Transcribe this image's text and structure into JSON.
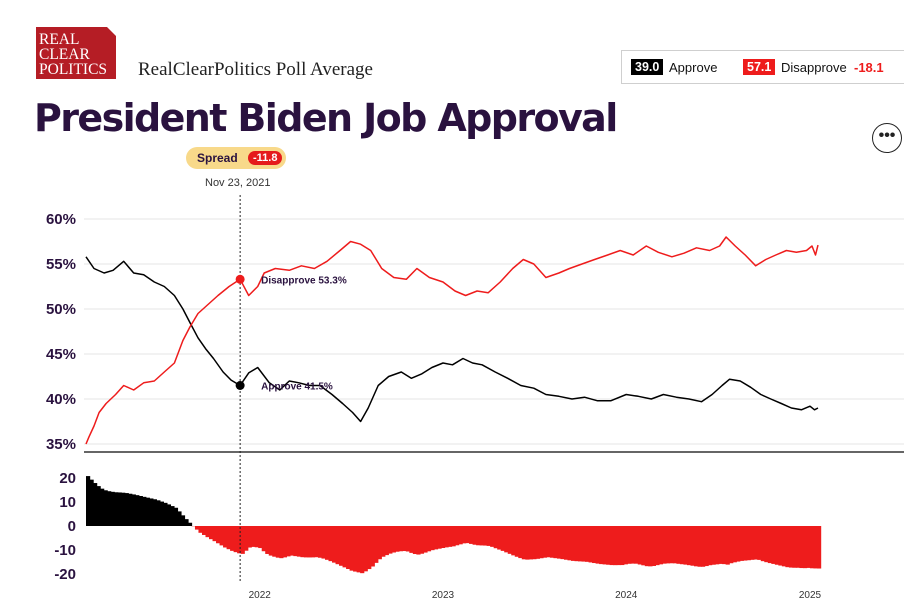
{
  "logo": {
    "lines": [
      "REAL",
      "CLEAR",
      "POLITICS"
    ]
  },
  "header": {
    "subtitle": "RealClearPolitics Poll Average",
    "title": "President Biden Job Approval",
    "more_icon": "ellipsis-icon",
    "more_label": "•••"
  },
  "legend": {
    "approve_value": "39.0",
    "approve_label": "Approve",
    "disapprove_value": "57.1",
    "disapprove_label": "Disapprove",
    "spread": "-18.1"
  },
  "hover": {
    "spread_label": "Spread",
    "spread_value": "-11.8",
    "date": "Nov 23, 2021",
    "disapprove_label": "Disapprove 53.3%",
    "approve_label": "Approve 41.5%"
  },
  "colors": {
    "approve": "#000000",
    "disapprove": "#ee1c1c",
    "title": "#2a123f",
    "spread_pill": "#f8d98a"
  },
  "chart_data": {
    "type": "line",
    "x_ticks": [
      "2022",
      "2023",
      "2024",
      "2025"
    ],
    "x_range": [
      "2021-01-20",
      "2025-01-20"
    ],
    "top": {
      "ylim": [
        34,
        61
      ],
      "y_ticks": [
        35,
        40,
        45,
        50,
        55,
        60
      ],
      "y_tick_labels": [
        "35%",
        "40%",
        "45%",
        "50%",
        "55%",
        "60%"
      ],
      "grid": true,
      "series": [
        {
          "name": "Approve",
          "color": "#000000",
          "points": [
            [
              "2021-01-20",
              55.8
            ],
            [
              "2021-02-05",
              54.5
            ],
            [
              "2021-02-25",
              54.0
            ],
            [
              "2021-03-15",
              54.3
            ],
            [
              "2021-04-05",
              55.3
            ],
            [
              "2021-04-25",
              54.0
            ],
            [
              "2021-05-15",
              53.8
            ],
            [
              "2021-06-05",
              53.0
            ],
            [
              "2021-06-25",
              52.5
            ],
            [
              "2021-07-15",
              51.5
            ],
            [
              "2021-08-01",
              50.0
            ],
            [
              "2021-08-15",
              48.5
            ],
            [
              "2021-08-31",
              46.8
            ],
            [
              "2021-09-15",
              45.6
            ],
            [
              "2021-10-01",
              44.5
            ],
            [
              "2021-10-20",
              43.0
            ],
            [
              "2021-11-05",
              42.1
            ],
            [
              "2021-11-23",
              41.5
            ],
            [
              "2021-12-10",
              42.9
            ],
            [
              "2021-12-28",
              43.5
            ],
            [
              "2022-01-20",
              41.8
            ],
            [
              "2022-02-10",
              41.0
            ],
            [
              "2022-03-01",
              42.0
            ],
            [
              "2022-03-20",
              41.8
            ],
            [
              "2022-04-10",
              41.5
            ],
            [
              "2022-05-01",
              41.5
            ],
            [
              "2022-05-25",
              40.5
            ],
            [
              "2022-06-15",
              39.5
            ],
            [
              "2022-07-05",
              38.5
            ],
            [
              "2022-07-21",
              37.5
            ],
            [
              "2022-08-05",
              39.0
            ],
            [
              "2022-08-25",
              41.5
            ],
            [
              "2022-09-15",
              42.5
            ],
            [
              "2022-10-10",
              43.0
            ],
            [
              "2022-10-30",
              42.3
            ],
            [
              "2022-11-20",
              42.8
            ],
            [
              "2022-12-10",
              43.5
            ],
            [
              "2023-01-01",
              44.0
            ],
            [
              "2023-01-20",
              43.8
            ],
            [
              "2023-02-10",
              44.5
            ],
            [
              "2023-03-01",
              44.0
            ],
            [
              "2023-03-20",
              43.8
            ],
            [
              "2023-04-15",
              43.0
            ],
            [
              "2023-05-10",
              42.3
            ],
            [
              "2023-06-05",
              41.5
            ],
            [
              "2023-07-01",
              41.2
            ],
            [
              "2023-07-25",
              40.5
            ],
            [
              "2023-08-20",
              40.3
            ],
            [
              "2023-09-15",
              40.0
            ],
            [
              "2023-10-10",
              40.2
            ],
            [
              "2023-11-05",
              39.8
            ],
            [
              "2023-12-01",
              39.8
            ],
            [
              "2024-01-01",
              40.5
            ],
            [
              "2024-01-25",
              40.3
            ],
            [
              "2024-02-20",
              40.0
            ],
            [
              "2024-03-15",
              40.5
            ],
            [
              "2024-04-10",
              40.2
            ],
            [
              "2024-05-05",
              40.0
            ],
            [
              "2024-05-30",
              39.7
            ],
            [
              "2024-06-20",
              40.5
            ],
            [
              "2024-07-10",
              41.5
            ],
            [
              "2024-07-25",
              42.2
            ],
            [
              "2024-08-15",
              42.0
            ],
            [
              "2024-09-05",
              41.3
            ],
            [
              "2024-09-25",
              40.5
            ],
            [
              "2024-10-15",
              40.0
            ],
            [
              "2024-11-05",
              39.5
            ],
            [
              "2024-11-25",
              39.0
            ],
            [
              "2024-12-15",
              38.8
            ],
            [
              "2025-01-01",
              39.2
            ],
            [
              "2025-01-10",
              38.8
            ],
            [
              "2025-01-17",
              39.0
            ]
          ]
        },
        {
          "name": "Disapprove",
          "color": "#ee1c1c",
          "points": [
            [
              "2021-01-20",
              35.0
            ],
            [
              "2021-01-26",
              35.8
            ],
            [
              "2021-02-05",
              37.0
            ],
            [
              "2021-02-15",
              38.5
            ],
            [
              "2021-03-01",
              39.5
            ],
            [
              "2021-03-20",
              40.5
            ],
            [
              "2021-04-05",
              41.5
            ],
            [
              "2021-04-25",
              41.0
            ],
            [
              "2021-05-15",
              41.8
            ],
            [
              "2021-06-05",
              42.0
            ],
            [
              "2021-06-25",
              43.0
            ],
            [
              "2021-07-15",
              44.0
            ],
            [
              "2021-08-01",
              46.5
            ],
            [
              "2021-08-15",
              48.0
            ],
            [
              "2021-08-31",
              49.5
            ],
            [
              "2021-09-20",
              50.5
            ],
            [
              "2021-10-10",
              51.5
            ],
            [
              "2021-11-01",
              52.5
            ],
            [
              "2021-11-23",
              53.3
            ],
            [
              "2021-12-10",
              51.5
            ],
            [
              "2021-12-28",
              52.5
            ],
            [
              "2022-01-10",
              54.0
            ],
            [
              "2022-02-01",
              54.5
            ],
            [
              "2022-03-01",
              54.3
            ],
            [
              "2022-03-25",
              54.8
            ],
            [
              "2022-04-20",
              54.5
            ],
            [
              "2022-05-15",
              55.3
            ],
            [
              "2022-06-10",
              56.5
            ],
            [
              "2022-07-01",
              57.5
            ],
            [
              "2022-07-21",
              57.2
            ],
            [
              "2022-08-10",
              56.5
            ],
            [
              "2022-09-01",
              54.5
            ],
            [
              "2022-09-25",
              53.5
            ],
            [
              "2022-10-20",
              53.3
            ],
            [
              "2022-11-10",
              54.5
            ],
            [
              "2022-12-05",
              53.5
            ],
            [
              "2023-01-01",
              53.0
            ],
            [
              "2023-01-25",
              52.0
            ],
            [
              "2023-02-15",
              51.5
            ],
            [
              "2023-03-10",
              52.0
            ],
            [
              "2023-04-01",
              51.8
            ],
            [
              "2023-04-25",
              53.0
            ],
            [
              "2023-05-20",
              54.5
            ],
            [
              "2023-06-10",
              55.5
            ],
            [
              "2023-07-01",
              55.0
            ],
            [
              "2023-07-25",
              53.5
            ],
            [
              "2023-08-20",
              54.0
            ],
            [
              "2023-09-10",
              54.5
            ],
            [
              "2023-10-05",
              55.0
            ],
            [
              "2023-10-30",
              55.5
            ],
            [
              "2023-11-25",
              56.0
            ],
            [
              "2023-12-20",
              56.5
            ],
            [
              "2024-01-15",
              56.0
            ],
            [
              "2024-02-10",
              57.0
            ],
            [
              "2024-03-05",
              56.3
            ],
            [
              "2024-04-01",
              55.8
            ],
            [
              "2024-04-25",
              56.2
            ],
            [
              "2024-05-20",
              56.8
            ],
            [
              "2024-06-15",
              56.5
            ],
            [
              "2024-07-05",
              57.0
            ],
            [
              "2024-07-18",
              58.0
            ],
            [
              "2024-08-05",
              57.0
            ],
            [
              "2024-08-25",
              56.0
            ],
            [
              "2024-09-15",
              54.8
            ],
            [
              "2024-10-05",
              55.5
            ],
            [
              "2024-10-25",
              56.0
            ],
            [
              "2024-11-15",
              56.5
            ],
            [
              "2024-12-05",
              56.3
            ],
            [
              "2024-12-25",
              56.5
            ],
            [
              "2025-01-05",
              57.0
            ],
            [
              "2025-01-12",
              56.0
            ],
            [
              "2025-01-17",
              57.1
            ]
          ]
        }
      ]
    },
    "bottom": {
      "name": "Spread",
      "ylim": [
        -23,
        23
      ],
      "y_ticks": [
        20,
        10,
        0,
        -10,
        -20
      ],
      "y_tick_labels": [
        "20",
        "10",
        "0",
        "-10",
        "-20"
      ],
      "positive_color": "#000000",
      "negative_color": "#ee1c1c"
    },
    "highlight": {
      "date": "2021-11-23",
      "approve": 41.5,
      "disapprove": 53.3,
      "spread": -11.8
    }
  }
}
